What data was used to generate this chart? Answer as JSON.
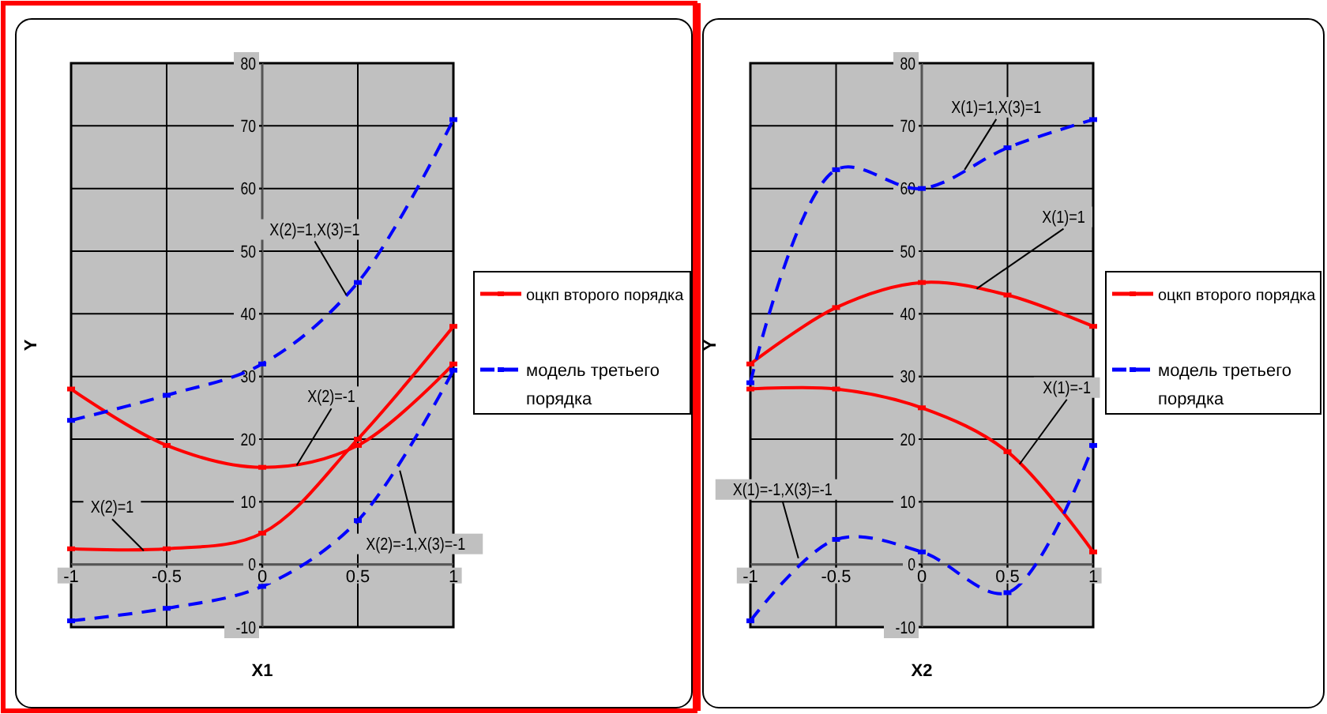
{
  "chart_data": [
    {
      "type": "line",
      "xlabel": "X1",
      "ylabel": "Y",
      "x": [
        -1,
        -0.5,
        0,
        0.5,
        1
      ],
      "xlim": [
        -1,
        1
      ],
      "ylim": [
        -10,
        80
      ],
      "xticks": [
        -1,
        -0.5,
        0,
        0.5,
        1
      ],
      "yticks": [
        -10,
        0,
        10,
        20,
        30,
        40,
        50,
        60,
        70,
        80
      ],
      "grid": true,
      "legend": "right",
      "marker": "square",
      "series": [
        {
          "name": "оцкп второго порядка",
          "color": "#ff0000",
          "line_style": "solid",
          "values": [
            28,
            19,
            15.5,
            19,
            32
          ]
        },
        {
          "color": "#ff0000",
          "line_style": "solid",
          "values": [
            2.5,
            2.5,
            5,
            20,
            38
          ]
        },
        {
          "name": "модель третьего порядка",
          "color": "#0000ff",
          "line_style": "dashed",
          "values": [
            23,
            27,
            32,
            45,
            71
          ]
        },
        {
          "color": "#0000ff",
          "line_style": "dashed",
          "values": [
            -9,
            -7,
            -3.5,
            7,
            31
          ]
        }
      ],
      "annotations": [
        {
          "text": "X(2)=1,X(3)=1",
          "x": 0.44,
          "y": 43
        },
        {
          "text": "X(2)=-1",
          "x": 0.18,
          "y": 15.8
        },
        {
          "text": "X(2)=1",
          "x": -0.62,
          "y": 2.2
        },
        {
          "text": "X(2)=-1,X(3)=-1",
          "x": 0.72,
          "y": 15
        }
      ]
    },
    {
      "type": "line",
      "xlabel": "X2",
      "ylabel": "Y",
      "x": [
        -1,
        -0.5,
        0,
        0.5,
        1
      ],
      "xlim": [
        -1,
        1
      ],
      "ylim": [
        -10,
        80
      ],
      "xticks": [
        -1,
        -0.5,
        0,
        0.5,
        1
      ],
      "yticks": [
        -10,
        0,
        10,
        20,
        30,
        40,
        50,
        60,
        70,
        80
      ],
      "grid": true,
      "legend": "right",
      "marker": "square",
      "series": [
        {
          "name": "оцкп второго порядка",
          "color": "#ff0000",
          "line_style": "solid",
          "values": [
            28,
            28,
            25,
            18,
            2
          ]
        },
        {
          "color": "#ff0000",
          "line_style": "solid",
          "values": [
            32,
            41,
            45,
            43,
            38
          ]
        },
        {
          "name": "модель третьего порядка",
          "color": "#0000ff",
          "line_style": "dashed",
          "values": [
            29,
            63,
            60,
            66.5,
            71
          ]
        },
        {
          "color": "#0000ff",
          "line_style": "dashed",
          "values": [
            -9,
            4,
            2,
            -4.5,
            19
          ]
        }
      ],
      "annotations": [
        {
          "text": "X(1)=1,X(3)=1",
          "x": 0.25,
          "y": 63
        },
        {
          "text": "X(1)=1",
          "x": 0.32,
          "y": 44
        },
        {
          "text": "X(1)=-1",
          "x": 0.57,
          "y": 16
        },
        {
          "text": "X(1)=-1,X(3)=-1",
          "x": -0.72,
          "y": 1
        }
      ]
    }
  ]
}
